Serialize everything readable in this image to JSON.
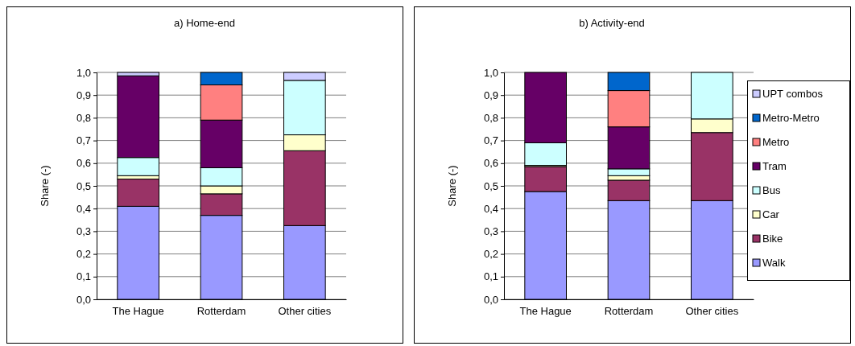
{
  "chart_data": [
    {
      "type": "bar",
      "title": "a) Home-end",
      "ylabel": "Share (-)",
      "categories": [
        "The Hague",
        "Rotterdam",
        "Other cities"
      ],
      "stacked": true,
      "legend": false,
      "grid": "y",
      "ylim": [
        0,
        1.0
      ],
      "yticks": [
        {
          "value": 0,
          "label": "0,0"
        },
        {
          "value": 0.1,
          "label": "0,1"
        },
        {
          "value": 0.2,
          "label": "0,2"
        },
        {
          "value": 0.3,
          "label": "0,3"
        },
        {
          "value": 0.4,
          "label": "0,4"
        },
        {
          "value": 0.5,
          "label": "0,5"
        },
        {
          "value": 0.6,
          "label": "0,6"
        },
        {
          "value": 0.7,
          "label": "0,7"
        },
        {
          "value": 0.8,
          "label": "0,8"
        },
        {
          "value": 0.9,
          "label": "0,9"
        },
        {
          "value": 1.0,
          "label": "1,0"
        }
      ],
      "series": [
        {
          "color": "#9999ff",
          "values": [
            0.41,
            0.37,
            0.325
          ]
        },
        {
          "color": "#993366",
          "values": [
            0.12,
            0.095,
            0.33
          ]
        },
        {
          "color": "#ffffcc",
          "values": [
            0.015,
            0.035,
            0.07
          ]
        },
        {
          "color": "#ccffff",
          "values": [
            0.08,
            0.08,
            0.24
          ]
        },
        {
          "color": "#660066",
          "values": [
            0.36,
            0.21,
            0
          ]
        },
        {
          "color": "#ff8080",
          "values": [
            0,
            0.155,
            0
          ]
        },
        {
          "color": "#0066cc",
          "values": [
            0,
            0.055,
            0
          ]
        },
        {
          "color": "#ccccff",
          "values": [
            0.015,
            0,
            0.035
          ]
        }
      ]
    },
    {
      "type": "bar",
      "title": "b) Activity-end",
      "ylabel": "Share (-)",
      "categories": [
        "The Hague",
        "Rotterdam",
        "Other cities"
      ],
      "stacked": true,
      "legend": "right",
      "grid": "y",
      "ylim": [
        0,
        1.0
      ],
      "yticks": [
        {
          "value": 0,
          "label": "0,0"
        },
        {
          "value": 0.1,
          "label": "0,1"
        },
        {
          "value": 0.2,
          "label": "0,2"
        },
        {
          "value": 0.3,
          "label": "0,3"
        },
        {
          "value": 0.4,
          "label": "0,4"
        },
        {
          "value": 0.5,
          "label": "0,5"
        },
        {
          "value": 0.6,
          "label": "0,6"
        },
        {
          "value": 0.7,
          "label": "0,7"
        },
        {
          "value": 0.8,
          "label": "0,8"
        },
        {
          "value": 0.9,
          "label": "0,9"
        },
        {
          "value": 1.0,
          "label": "1,0"
        }
      ],
      "series": [
        {
          "name": "Walk",
          "color": "#9999ff",
          "values": [
            0.475,
            0.435,
            0.435
          ]
        },
        {
          "name": "Bike",
          "color": "#993366",
          "values": [
            0.11,
            0.09,
            0.3
          ]
        },
        {
          "name": "Car",
          "color": "#ffffcc",
          "values": [
            0.005,
            0.02,
            0.06
          ]
        },
        {
          "name": "Bus",
          "color": "#ccffff",
          "values": [
            0.1,
            0.03,
            0.205
          ]
        },
        {
          "name": "Tram",
          "color": "#660066",
          "values": [
            0.31,
            0.185,
            0
          ]
        },
        {
          "name": "Metro",
          "color": "#ff8080",
          "values": [
            0,
            0.16,
            0
          ]
        },
        {
          "name": "Metro-Metro",
          "color": "#0066cc",
          "values": [
            0,
            0.08,
            0
          ]
        },
        {
          "name": "UPT combos",
          "color": "#ccccff",
          "values": [
            0,
            0,
            0
          ]
        }
      ]
    }
  ]
}
